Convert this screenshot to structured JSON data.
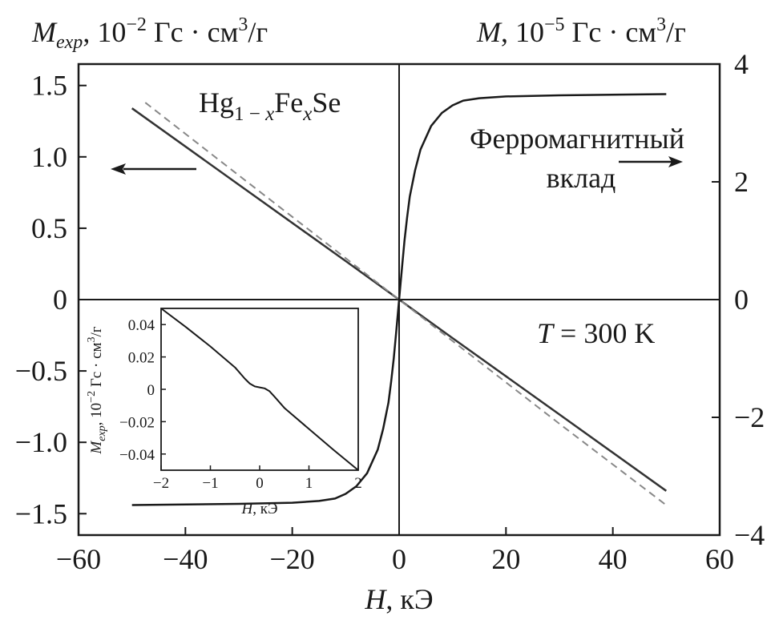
{
  "chart_data": [
    {
      "type": "line",
      "left_axis_label": {
        "sym": "M",
        "sub": "exp",
        "rest": ", 10",
        "exp": "−2",
        "unit": " Гс · см",
        "unit_exp": "3",
        "unit_tail": "/г"
      },
      "right_axis_label": {
        "sym": "M",
        "rest": ", 10",
        "exp": "−5",
        "unit": " Гс · см",
        "unit_exp": "3",
        "unit_tail": "/г"
      },
      "xlabel": {
        "sym": "H",
        "rest": ", кЭ"
      },
      "xlim": [
        -60,
        60
      ],
      "ylim_left": [
        -1.65,
        1.65
      ],
      "ylim_right": [
        -4,
        4
      ],
      "x_ticks": [
        -60,
        -40,
        -20,
        0,
        20,
        40,
        60
      ],
      "x_tick_labels": [
        "−60",
        "−40",
        "−20",
        "0",
        "20",
        "40",
        "60"
      ],
      "y_left_ticks": [
        -1.5,
        -1.0,
        -0.5,
        0,
        0.5,
        1.0,
        1.5
      ],
      "y_left_tick_labels": [
        "−1.5",
        "−1.0",
        "−0.5",
        "0",
        "0.5",
        "1.0",
        "1.5"
      ],
      "y_right_ticks": [
        -4,
        -2,
        0,
        2,
        4
      ],
      "y_right_tick_labels": [
        "−4",
        "−2",
        "0",
        "2",
        "4"
      ],
      "annotations": {
        "compound": {
          "a": "Hg",
          "b": "1 − ",
          "c": "x",
          "d": "Fe",
          "e": "x",
          "f": "Se"
        },
        "ferro_line1": "Ферромагнитный",
        "ferro_line2": "вклад",
        "temperature": {
          "sym": "T",
          "rest": " = 300 K"
        }
      },
      "series": [
        {
          "axis": "left",
          "style": "solid",
          "color": "#333333",
          "x": [
            -50,
            -30,
            -10,
            0,
            10,
            30,
            50
          ],
          "y": [
            1.34,
            0.805,
            0.27,
            0.0,
            -0.27,
            -0.805,
            -1.34
          ]
        },
        {
          "axis": "left",
          "style": "dashed",
          "color": "#888888",
          "x": [
            -47.5,
            -30,
            -10,
            0,
            10,
            30,
            50
          ],
          "y": [
            1.38,
            0.87,
            0.29,
            0.0,
            -0.29,
            -0.87,
            -1.44
          ]
        },
        {
          "axis": "right",
          "style": "solid",
          "color": "#1a1a1a",
          "x": [
            -50,
            -30,
            -20,
            -15,
            -12,
            -10,
            -8,
            -6,
            -4,
            -3,
            -2,
            -1.5,
            -1,
            -0.5,
            0,
            0.5,
            1,
            1.5,
            2,
            3,
            4,
            6,
            8,
            10,
            12,
            15,
            20,
            30,
            50
          ],
          "y": [
            -3.49,
            -3.47,
            -3.45,
            -3.42,
            -3.38,
            -3.3,
            -3.17,
            -2.95,
            -2.55,
            -2.2,
            -1.75,
            -1.4,
            -1.0,
            -0.5,
            0.0,
            0.5,
            1.0,
            1.4,
            1.75,
            2.2,
            2.55,
            2.95,
            3.17,
            3.3,
            3.38,
            3.42,
            3.45,
            3.47,
            3.49
          ]
        }
      ]
    },
    {
      "type": "line",
      "ylabel": {
        "sym": "M",
        "sub": "exp",
        "rest": ", 10",
        "exp": "−2",
        "unit": " Гс · см",
        "unit_exp": "3",
        "unit_tail": "/г"
      },
      "xlabel": {
        "sym": "H",
        "rest": ", кЭ"
      },
      "xlim": [
        -2,
        2
      ],
      "ylim": [
        -0.05,
        0.05
      ],
      "x_ticks": [
        -2,
        -1,
        0,
        1,
        2
      ],
      "x_tick_labels": [
        "−2",
        "−1",
        "0",
        "1",
        "2"
      ],
      "y_ticks": [
        -0.04,
        -0.02,
        0,
        0.02,
        0.04
      ],
      "y_tick_labels": [
        "−0.04",
        "−0.02",
        "0",
        "0.02",
        "0.04"
      ],
      "series": [
        {
          "color": "#1a1a1a",
          "x": [
            -2.0,
            -1.5,
            -1.0,
            -0.5,
            -0.3,
            -0.2,
            -0.1,
            0.0,
            0.1,
            0.2,
            0.3,
            0.5,
            1.0,
            1.5,
            2.0
          ],
          "y": [
            0.05,
            0.0385,
            0.0265,
            0.0135,
            0.0065,
            0.0035,
            0.0018,
            0.0012,
            0.0006,
            -0.0012,
            -0.0045,
            -0.0115,
            -0.0245,
            -0.0375,
            -0.05
          ]
        }
      ]
    }
  ]
}
